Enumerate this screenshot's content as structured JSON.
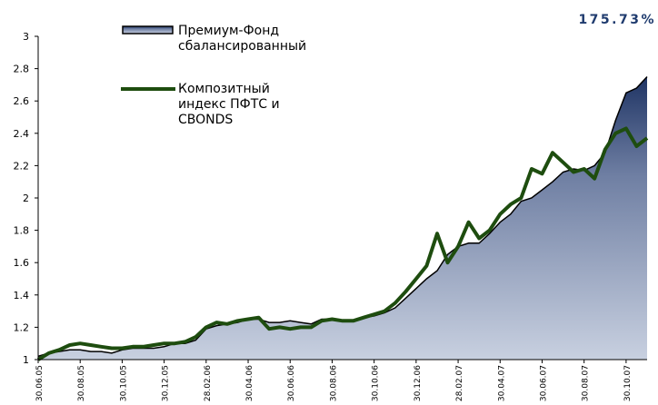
{
  "chart_data": {
    "type": "area_line",
    "annotation": "175.73%",
    "categories": [
      "30.06.05",
      null,
      null,
      null,
      "30.08.05",
      null,
      null,
      null,
      "30.10.05",
      null,
      null,
      null,
      "30.12.05",
      null,
      null,
      null,
      "28.02.06",
      null,
      null,
      null,
      "30.04.06",
      null,
      null,
      null,
      "30.06.06",
      null,
      null,
      null,
      "30.08.06",
      null,
      null,
      null,
      "30.10.06",
      null,
      null,
      null,
      "30.12.06",
      null,
      null,
      null,
      "28.02.07",
      null,
      null,
      null,
      "30.04.07",
      null,
      null,
      null,
      "30.06.07",
      null,
      null,
      null,
      "30.08.07",
      null,
      null,
      null,
      "30.10.07",
      null,
      null
    ],
    "series": [
      {
        "name": "Премиум-Фонд сбалансированный",
        "color": "#1f3464",
        "kind": "area",
        "values": [
          1.02,
          1.04,
          1.05,
          1.06,
          1.06,
          1.05,
          1.05,
          1.04,
          1.06,
          1.07,
          1.07,
          1.07,
          1.08,
          1.1,
          1.1,
          1.12,
          1.19,
          1.21,
          1.22,
          1.23,
          1.25,
          1.25,
          1.23,
          1.23,
          1.24,
          1.23,
          1.22,
          1.25,
          1.25,
          1.24,
          1.24,
          1.26,
          1.27,
          1.29,
          1.32,
          1.38,
          1.44,
          1.5,
          1.55,
          1.65,
          1.7,
          1.72,
          1.72,
          1.78,
          1.85,
          1.9,
          1.98,
          2.0,
          2.05,
          2.1,
          2.16,
          2.18,
          2.17,
          2.2,
          2.28,
          2.48,
          2.65,
          2.68,
          2.75
        ]
      },
      {
        "name": "Композитный индекс ПФТС и CBONDS",
        "color": "#1e4d0f",
        "kind": "line",
        "values": [
          1.0,
          1.04,
          1.06,
          1.09,
          1.1,
          1.09,
          1.08,
          1.07,
          1.07,
          1.08,
          1.08,
          1.09,
          1.1,
          1.1,
          1.11,
          1.14,
          1.2,
          1.23,
          1.22,
          1.24,
          1.25,
          1.26,
          1.19,
          1.2,
          1.19,
          1.2,
          1.2,
          1.24,
          1.25,
          1.24,
          1.24,
          1.26,
          1.28,
          1.3,
          1.35,
          1.42,
          1.5,
          1.58,
          1.78,
          1.6,
          1.7,
          1.85,
          1.75,
          1.8,
          1.9,
          1.96,
          2.0,
          2.18,
          2.15,
          2.28,
          2.22,
          2.16,
          2.18,
          2.12,
          2.3,
          2.4,
          2.43,
          2.32,
          2.37
        ]
      }
    ],
    "ylim": [
      1,
      3
    ],
    "yticks": [
      1,
      1.2,
      1.4,
      1.6,
      1.8,
      2,
      2.2,
      2.4,
      2.6,
      2.8,
      3
    ]
  }
}
